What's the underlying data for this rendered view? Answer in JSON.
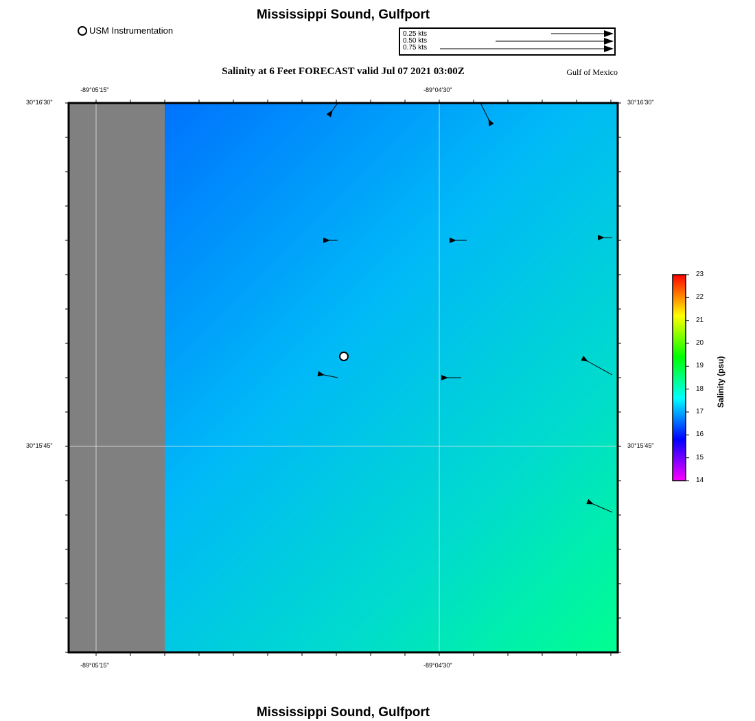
{
  "header": {
    "title": "Mississippi Sound, Gulfport",
    "legend_label": "USM Instrumentation",
    "subtitle": "Salinity at 6 Feet FORECAST valid Jul 07 2021 03:00Z",
    "region": "Gulf of Mexico"
  },
  "current_scale": {
    "labels": [
      "0.25 kts",
      "0.50 kts",
      "0.75 kts"
    ]
  },
  "map": {
    "lon_labels": [
      "-89°05'15\"",
      "-89°04'30\""
    ],
    "lat_labels": [
      "30°16'30\"",
      "30°15'45\""
    ],
    "land_color": "#808080",
    "arrows": [
      {
        "name": "arrow-1",
        "from": [
          0.49,
          0.0
        ],
        "to": [
          0.48,
          0.014
        ]
      },
      {
        "name": "arrow-2",
        "from": [
          0.75,
          0.0
        ],
        "to": [
          0.765,
          0.03
        ]
      },
      {
        "name": "arrow-3",
        "from": [
          0.49,
          0.25
        ],
        "to": [
          0.475,
          0.25
        ]
      },
      {
        "name": "arrow-4",
        "from": [
          0.725,
          0.25
        ],
        "to": [
          0.705,
          0.25
        ]
      },
      {
        "name": "arrow-5",
        "from": [
          0.99,
          0.245
        ],
        "to": [
          0.975,
          0.245
        ]
      },
      {
        "name": "arrow-6",
        "from": [
          0.49,
          0.5
        ],
        "to": [
          0.465,
          0.495
        ]
      },
      {
        "name": "arrow-7",
        "from": [
          0.715,
          0.5
        ],
        "to": [
          0.69,
          0.5
        ]
      },
      {
        "name": "arrow-8",
        "from": [
          0.99,
          0.495
        ],
        "to": [
          0.945,
          0.47
        ]
      },
      {
        "name": "arrow-9",
        "from": [
          0.99,
          0.745
        ],
        "to": [
          0.955,
          0.73
        ]
      }
    ],
    "instrument": {
      "at": [
        0.5,
        0.46
      ]
    }
  },
  "colorbar": {
    "label": "Salinity (psu)",
    "ticks": [
      "23",
      "22",
      "21",
      "20",
      "19",
      "18",
      "17",
      "16",
      "15",
      "14"
    ],
    "colors": [
      "#ff0000",
      "#ff8000",
      "#ffff00",
      "#80ff00",
      "#00ff00",
      "#00ff80",
      "#00ffff",
      "#0080ff",
      "#0000ff",
      "#8000ff",
      "#ff00ff"
    ]
  },
  "footer": {
    "title": "Mississippi Sound, Gulfport"
  }
}
